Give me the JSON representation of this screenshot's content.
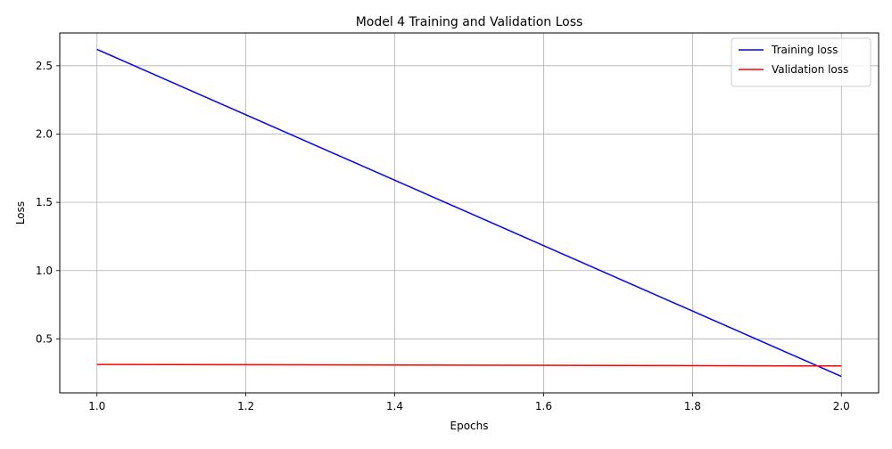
{
  "chart_data": {
    "type": "line",
    "title": "Model 4 Training and Validation Loss",
    "xlabel": "Epochs",
    "ylabel": "Loss",
    "x": [
      1.0,
      2.0
    ],
    "series": [
      {
        "name": "Training loss",
        "values": [
          2.62,
          0.225
        ],
        "color": "#0000ff"
      },
      {
        "name": "Validation loss",
        "values": [
          0.313,
          0.302
        ],
        "color": "#ff0000"
      }
    ],
    "xlim": [
      0.95,
      2.05
    ],
    "ylim": [
      0.105,
      2.74
    ],
    "xticks": [
      "1.0",
      "1.2",
      "1.4",
      "1.6",
      "1.8",
      "2.0"
    ],
    "yticks": [
      "0.5",
      "1.0",
      "1.5",
      "2.0",
      "2.5"
    ],
    "grid": true,
    "legend_position": "top-right"
  }
}
